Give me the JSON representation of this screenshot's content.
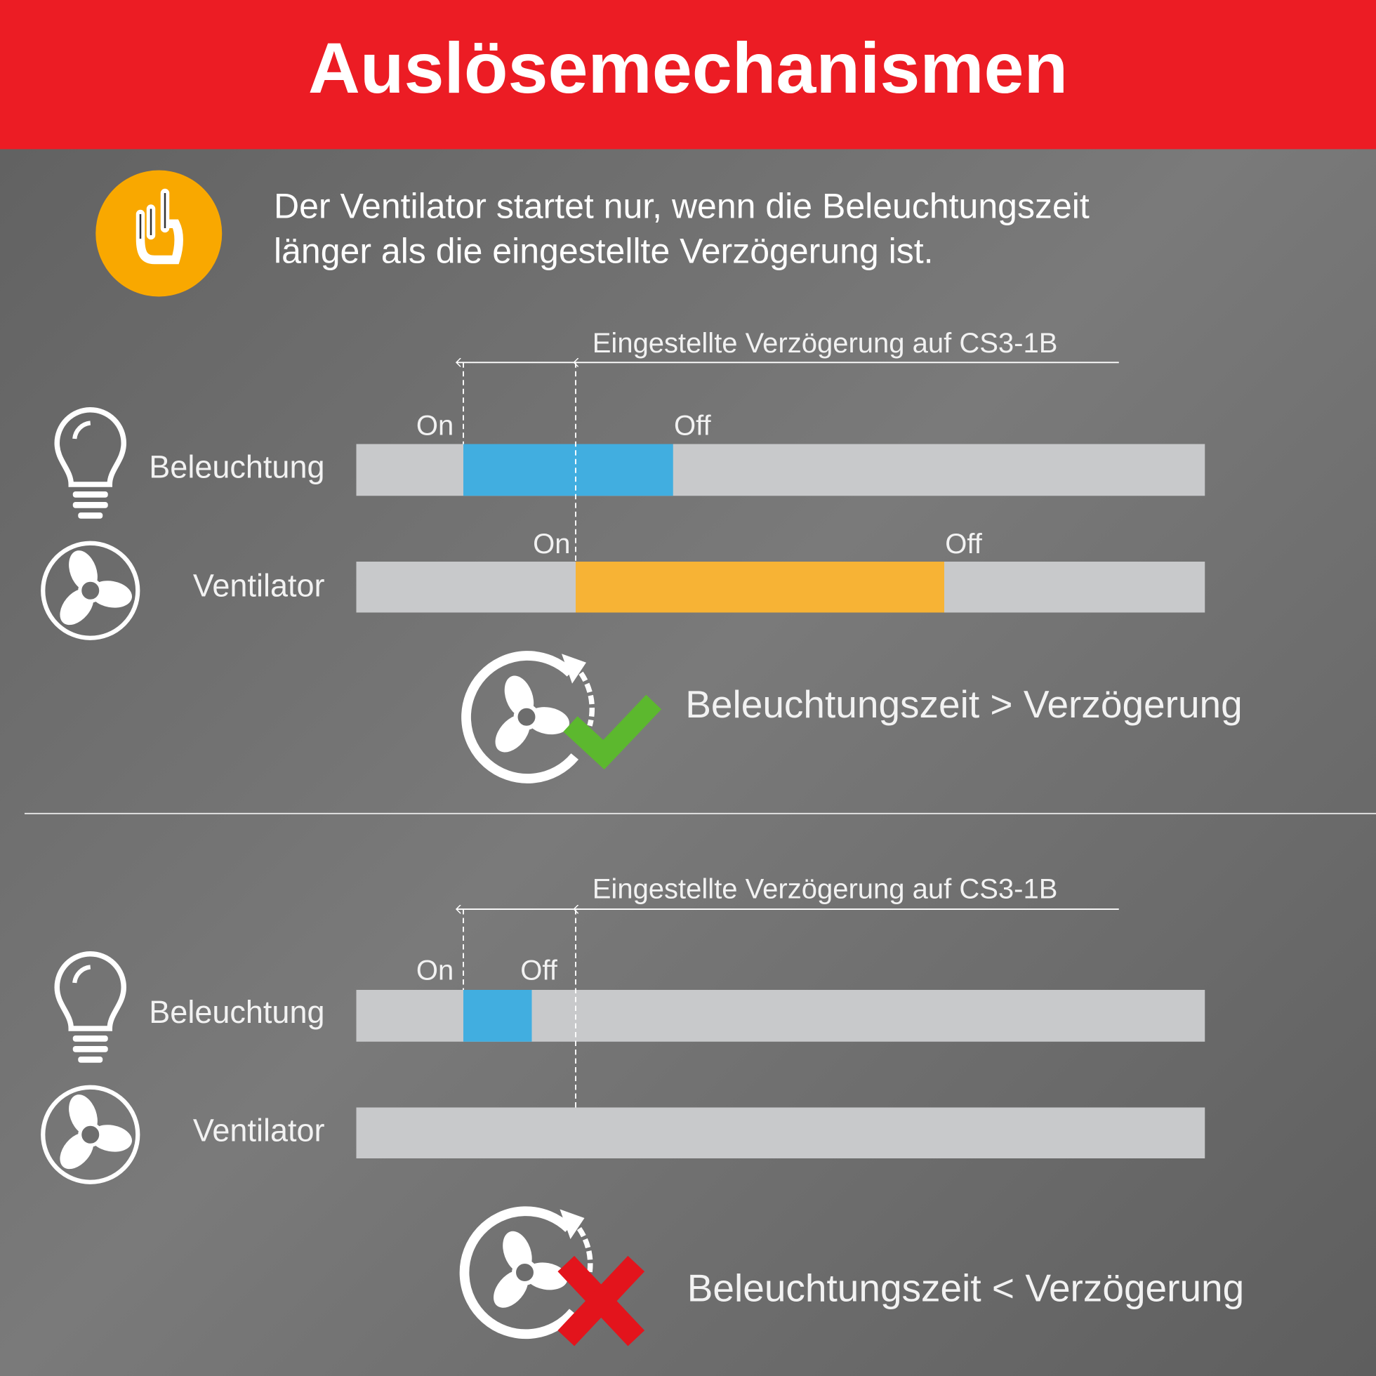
{
  "header": {
    "title": "Auslösemechanismen"
  },
  "note": {
    "lines": [
      "Der Ventilator startet nur, wenn die Beleuchtungszeit",
      "länger als die eingestellte Verzögerung ist."
    ]
  },
  "sections": [
    {
      "delay_label": "Eingestellte Verzögerung auf CS3-1B",
      "rows": [
        {
          "label": "Beleuchtung",
          "on": "On",
          "off": "Off"
        },
        {
          "label": "Ventilator",
          "on": "On",
          "off": "Off"
        }
      ],
      "result": "Beleuchtungszeit > Verzögerung"
    },
    {
      "delay_label": "Eingestellte Verzögerung auf CS3-1B",
      "rows": [
        {
          "label": "Beleuchtung",
          "on": "On",
          "off": "Off"
        },
        {
          "label": "Ventilator"
        }
      ],
      "result": "Beleuchtungszeit < Verzögerung"
    }
  ]
}
